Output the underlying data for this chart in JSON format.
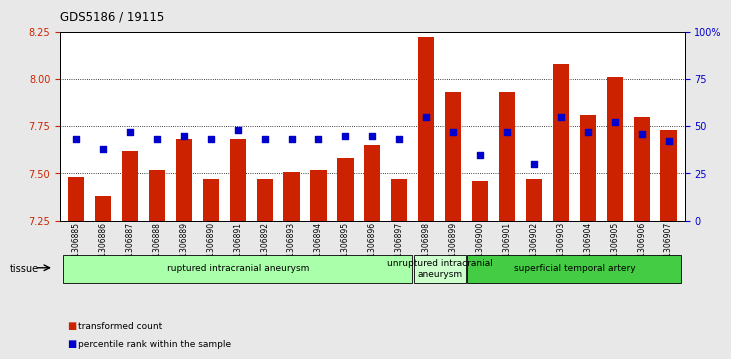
{
  "title": "GDS5186 / 19115",
  "samples": [
    "GSM1306885",
    "GSM1306886",
    "GSM1306887",
    "GSM1306888",
    "GSM1306889",
    "GSM1306890",
    "GSM1306891",
    "GSM1306892",
    "GSM1306893",
    "GSM1306894",
    "GSM1306895",
    "GSM1306896",
    "GSM1306897",
    "GSM1306898",
    "GSM1306899",
    "GSM1306900",
    "GSM1306901",
    "GSM1306902",
    "GSM1306903",
    "GSM1306904",
    "GSM1306905",
    "GSM1306906",
    "GSM1306907"
  ],
  "bar_values": [
    7.48,
    7.38,
    7.62,
    7.52,
    7.68,
    7.47,
    7.68,
    7.47,
    7.51,
    7.52,
    7.58,
    7.65,
    7.47,
    8.22,
    7.93,
    7.46,
    7.93,
    7.47,
    8.08,
    7.81,
    8.01,
    7.8,
    7.73
  ],
  "percentile_values": [
    43,
    38,
    47,
    43,
    45,
    43,
    48,
    43,
    43,
    43,
    45,
    45,
    43,
    55,
    47,
    35,
    47,
    30,
    55,
    47,
    52,
    46,
    42
  ],
  "groups": [
    {
      "label": "ruptured intracranial aneurysm",
      "start": 0,
      "end": 12,
      "color": "#aaffaa"
    },
    {
      "label": "unruptured intracranial\naneurysm",
      "start": 13,
      "end": 14,
      "color": "#ccffcc"
    },
    {
      "label": "superficial temporal artery",
      "start": 15,
      "end": 22,
      "color": "#44cc44"
    }
  ],
  "bar_color": "#cc2200",
  "dot_color": "#0000cc",
  "ymin": 7.25,
  "ymax": 8.25,
  "ylim_left": [
    7.25,
    8.25
  ],
  "ylim_right": [
    0,
    100
  ],
  "yticks_left": [
    7.25,
    7.5,
    7.75,
    8.0,
    8.25
  ],
  "yticks_right": [
    0,
    25,
    50,
    75,
    100
  ],
  "ytick_labels_right": [
    "0",
    "25",
    "50",
    "75",
    "100%"
  ],
  "grid_values": [
    7.5,
    7.75,
    8.0
  ],
  "background_color": "#e8e8e8",
  "plot_bg": "#ffffff",
  "tissue_label": "tissue",
  "legend_items": [
    {
      "color": "#cc2200",
      "label": "transformed count",
      "marker": "s"
    },
    {
      "color": "#0000cc",
      "label": "percentile rank within the sample",
      "marker": "s"
    }
  ]
}
